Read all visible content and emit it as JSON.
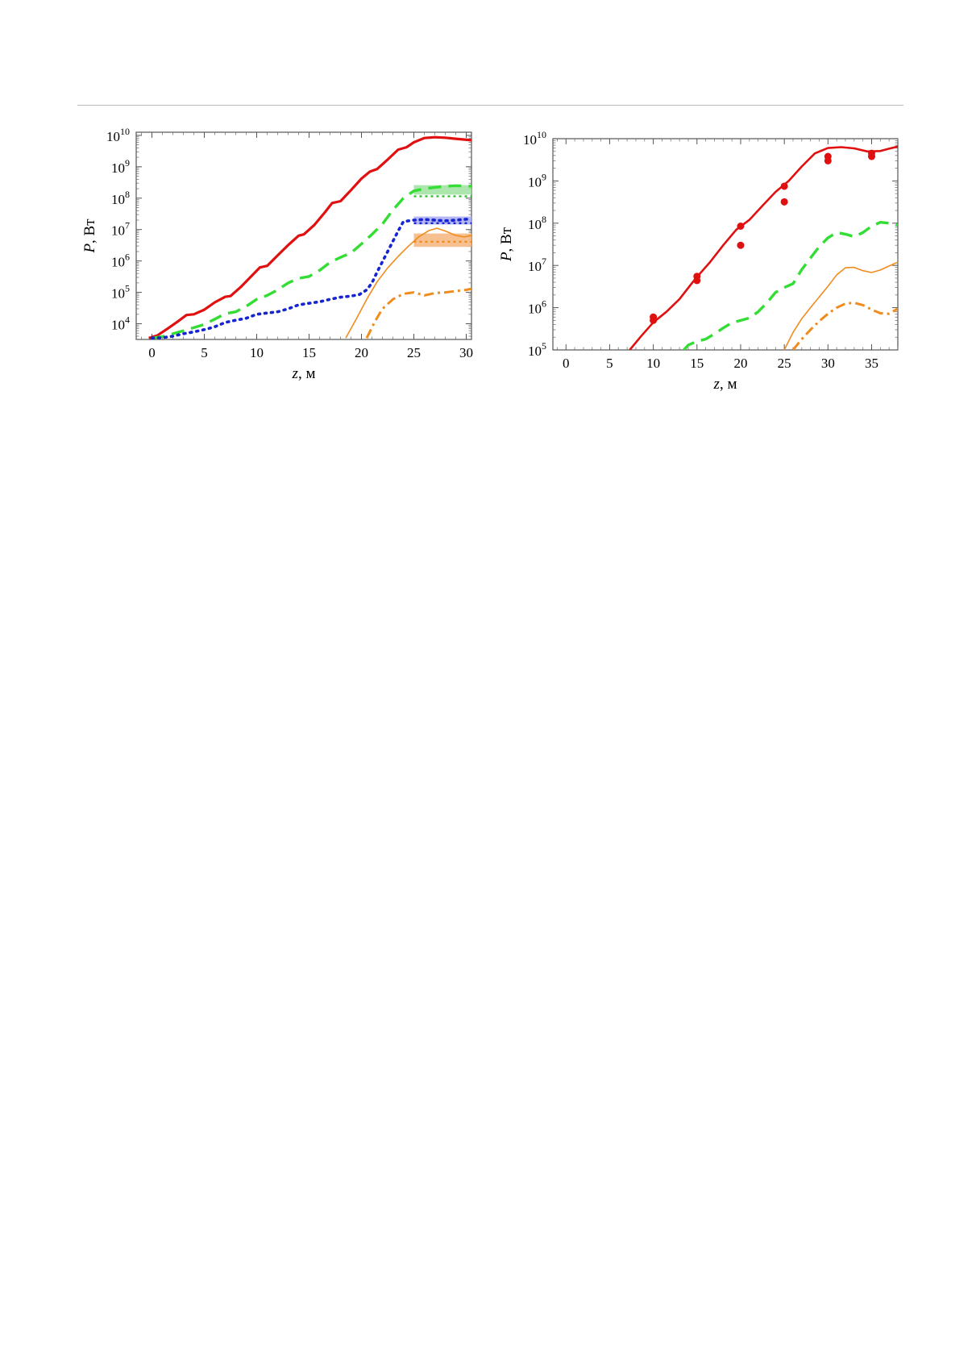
{
  "chart_data": [
    {
      "type": "line",
      "xlabel": "z, м",
      "ylabel": "P, Вт",
      "xlim": [
        -1.5,
        30.5
      ],
      "ylim_log10": [
        3.5,
        10.1
      ],
      "yscale": "log",
      "x_ticks": [
        "0",
        "5",
        "10",
        "15",
        "20",
        "25",
        "30"
      ],
      "y_ticks": [
        {
          "base": "10",
          "exp": "4"
        },
        {
          "base": "10",
          "exp": "5"
        },
        {
          "base": "10",
          "exp": "6"
        },
        {
          "base": "10",
          "exp": "7"
        },
        {
          "base": "10",
          "exp": "8"
        },
        {
          "base": "10",
          "exp": "9"
        },
        {
          "base": "10",
          "exp": "10"
        }
      ],
      "series": [
        {
          "color": "#e01010",
          "style": "solid-thick",
          "x": [
            -0.3,
            0.5,
            1.5,
            2.5,
            3.3,
            4.0,
            5.0,
            6.0,
            7.0,
            7.5,
            8.5,
            9.5,
            10.3,
            11.0,
            12.0,
            13.0,
            14.0,
            14.5,
            15.5,
            16.5,
            17.2,
            18.0,
            19.0,
            20.0,
            20.8,
            21.5,
            22.5,
            23.5,
            24.3,
            25.0,
            26.0,
            27.0,
            28.0,
            29.0,
            30.5
          ],
          "y": [
            3500,
            4200,
            7000,
            12000,
            19000,
            20000,
            28000,
            48000,
            72000,
            76000,
            150000,
            330000,
            620000,
            700000,
            1500000,
            3200000,
            6400000,
            7000000,
            14000000,
            35000000,
            70000000,
            80000000,
            180000000,
            420000000,
            700000000,
            850000000,
            1700000000,
            3500000000,
            4200000000,
            6000000000,
            8200000000,
            8700000000,
            8400000000,
            7800000000,
            7000000000
          ]
        },
        {
          "color": "#33dd33",
          "style": "dashed",
          "x": [
            0.0,
            1.0,
            2.0,
            3.0,
            4.0,
            5.0,
            6.0,
            7.0,
            8.0,
            9.0,
            10.0,
            11.0,
            12.0,
            13.0,
            14.0,
            15.0,
            16.0,
            17.0,
            18.0,
            19.0,
            20.0,
            21.0,
            22.0,
            23.0,
            24.0,
            25.0,
            26.0,
            27.0,
            28.0,
            29.0,
            30.5
          ],
          "y": [
            3500,
            3900,
            4800,
            6000,
            7500,
            9500,
            14000,
            21000,
            24000,
            36000,
            60000,
            80000,
            120000,
            200000,
            280000,
            320000,
            500000,
            900000,
            1300000,
            1800000,
            3500000,
            7000000,
            15000000,
            42000000,
            100000000,
            170000000,
            200000000,
            220000000,
            240000000,
            250000000,
            240000000
          ]
        },
        {
          "color": "#1525d0",
          "style": "dotted",
          "x": [
            0.0,
            1.0,
            2.0,
            3.0,
            4.0,
            5.0,
            6.0,
            7.0,
            8.0,
            9.0,
            10.0,
            11.0,
            12.0,
            13.0,
            14.0,
            15.0,
            16.0,
            17.0,
            18.0,
            19.0,
            19.8,
            20.5,
            21.0,
            21.5,
            22.5,
            23.5,
            24.0,
            25.0,
            26.0,
            27.0,
            28.0,
            29.0,
            30.5
          ],
          "y": [
            3500,
            3600,
            4000,
            4800,
            5500,
            6500,
            8000,
            11000,
            13000,
            15000,
            20000,
            22000,
            24000,
            30000,
            40000,
            45000,
            50000,
            60000,
            70000,
            76000,
            85000,
            120000,
            200000,
            450000,
            2000000,
            9000000,
            18000000,
            20000000,
            21000000,
            20000000,
            19000000,
            20000000,
            22000000
          ]
        },
        {
          "color": "#f08c1e",
          "style": "solid-thin",
          "x": [
            18.5,
            19.5,
            20.5,
            21.5,
            22.5,
            23.5,
            24.5,
            25.5,
            26.5,
            27.2,
            28.0,
            29.0,
            29.8,
            30.5
          ],
          "y": [
            3500,
            14000,
            60000,
            220000,
            600000,
            1400000,
            3000000,
            6000000,
            9500000,
            11000000,
            9000000,
            6500000,
            5800000,
            6500000
          ]
        },
        {
          "color": "#f08c1e",
          "style": "dashdot",
          "x": [
            20.5,
            21.3,
            22.0,
            23.0,
            24.0,
            25.0,
            26.0,
            27.0,
            28.0,
            29.0,
            30.0,
            30.5
          ],
          "y": [
            3500,
            12000,
            30000,
            60000,
            90000,
            100000,
            80000,
            95000,
            100000,
            110000,
            120000,
            130000
          ]
        }
      ],
      "bands": [
        {
          "color": "#9fe29f",
          "x": [
            25,
            30.5
          ],
          "range": [
            130000000,
            260000000
          ],
          "line": 115000000,
          "line_color": "#33bb33"
        },
        {
          "color": "#a9a9f0",
          "x": [
            25,
            30.5
          ],
          "range": [
            14500000,
            26000000
          ],
          "line": 16000000,
          "line_color": "#1525d0"
        },
        {
          "color": "#f6b57d",
          "x": [
            25,
            30.5
          ],
          "range": [
            2800000,
            7500000
          ],
          "line": 4100000,
          "line_color": "#f08c1e"
        }
      ]
    },
    {
      "type": "line",
      "xlabel": "z, м",
      "ylabel": "P, Вт",
      "xlim": [
        -1.5,
        38.0
      ],
      "ylim_log10": [
        5.0,
        10.0
      ],
      "yscale": "log",
      "x_ticks": [
        "0",
        "5",
        "10",
        "15",
        "20",
        "25",
        "30",
        "35"
      ],
      "y_ticks": [
        {
          "base": "10",
          "exp": "5"
        },
        {
          "base": "10",
          "exp": "6"
        },
        {
          "base": "10",
          "exp": "7"
        },
        {
          "base": "10",
          "exp": "8"
        },
        {
          "base": "10",
          "exp": "9"
        },
        {
          "base": "10",
          "exp": "10"
        }
      ],
      "series": [
        {
          "color": "#e01010",
          "style": "solid",
          "x": [
            7.3,
            8.5,
            10.0,
            11.5,
            13.0,
            14.5,
            15.5,
            16.5,
            18.0,
            19.5,
            21.0,
            22.5,
            24.0,
            25.5,
            27.0,
            28.5,
            30.0,
            31.5,
            33.0,
            34.5,
            36.0,
            37.0,
            38.0
          ],
          "y": [
            100000,
            200000,
            450000,
            800000,
            1600000,
            4000000,
            7000000,
            12000000,
            30000000,
            70000000,
            120000000,
            260000000,
            550000000,
            1000000000,
            2200000000,
            4500000000,
            6000000000,
            6300000000,
            5900000000,
            5000000000,
            5100000000,
            5800000000,
            6500000000
          ]
        },
        {
          "color": "#33dd33",
          "style": "dashed",
          "x": [
            13.5,
            14.0,
            15.0,
            16.0,
            17.0,
            18.0,
            19.0,
            20.0,
            21.0,
            22.0,
            23.0,
            24.0,
            25.0,
            26.0,
            27.0,
            28.0,
            29.0,
            30.0,
            31.0,
            32.0,
            33.0,
            34.0,
            35.0,
            36.0,
            37.0,
            38.0
          ],
          "y": [
            100000,
            130000,
            160000,
            180000,
            240000,
            330000,
            440000,
            500000,
            570000,
            800000,
            1300000,
            2300000,
            3000000,
            3700000,
            8000000,
            15000000,
            28000000,
            45000000,
            60000000,
            55000000,
            48000000,
            60000000,
            85000000,
            105000000,
            100000000,
            90000000
          ]
        },
        {
          "color": "#f08c1e",
          "style": "solid-thin",
          "x": [
            25.0,
            26.0,
            27.0,
            28.0,
            29.0,
            30.0,
            31.0,
            32.0,
            33.0,
            34.0,
            35.0,
            36.0,
            37.0,
            38.0
          ],
          "y": [
            100000,
            260000,
            550000,
            1000000,
            1800000,
            3200000,
            6000000,
            8800000,
            9000000,
            7500000,
            6800000,
            7800000,
            9700000,
            12000000
          ]
        },
        {
          "color": "#f08c1e",
          "style": "dashdot",
          "x": [
            26.0,
            27.0,
            28.0,
            29.0,
            30.0,
            31.0,
            32.0,
            33.0,
            34.0,
            35.0,
            36.0,
            37.0,
            38.0
          ],
          "y": [
            100000,
            180000,
            300000,
            480000,
            720000,
            1000000,
            1250000,
            1300000,
            1150000,
            900000,
            740000,
            720000,
            950000
          ]
        }
      ],
      "points": {
        "color": "#e01010",
        "x": [
          10.0,
          10.0,
          15.0,
          15.0,
          20.0,
          20.0,
          25.0,
          25.0,
          30.0,
          30.0,
          35.0,
          35.0
        ],
        "y": [
          600000,
          500000,
          5500000,
          4400000,
          85000000,
          30000000,
          750000000,
          320000000,
          3800000000,
          3000000000,
          4500000000,
          3800000000
        ]
      }
    }
  ]
}
